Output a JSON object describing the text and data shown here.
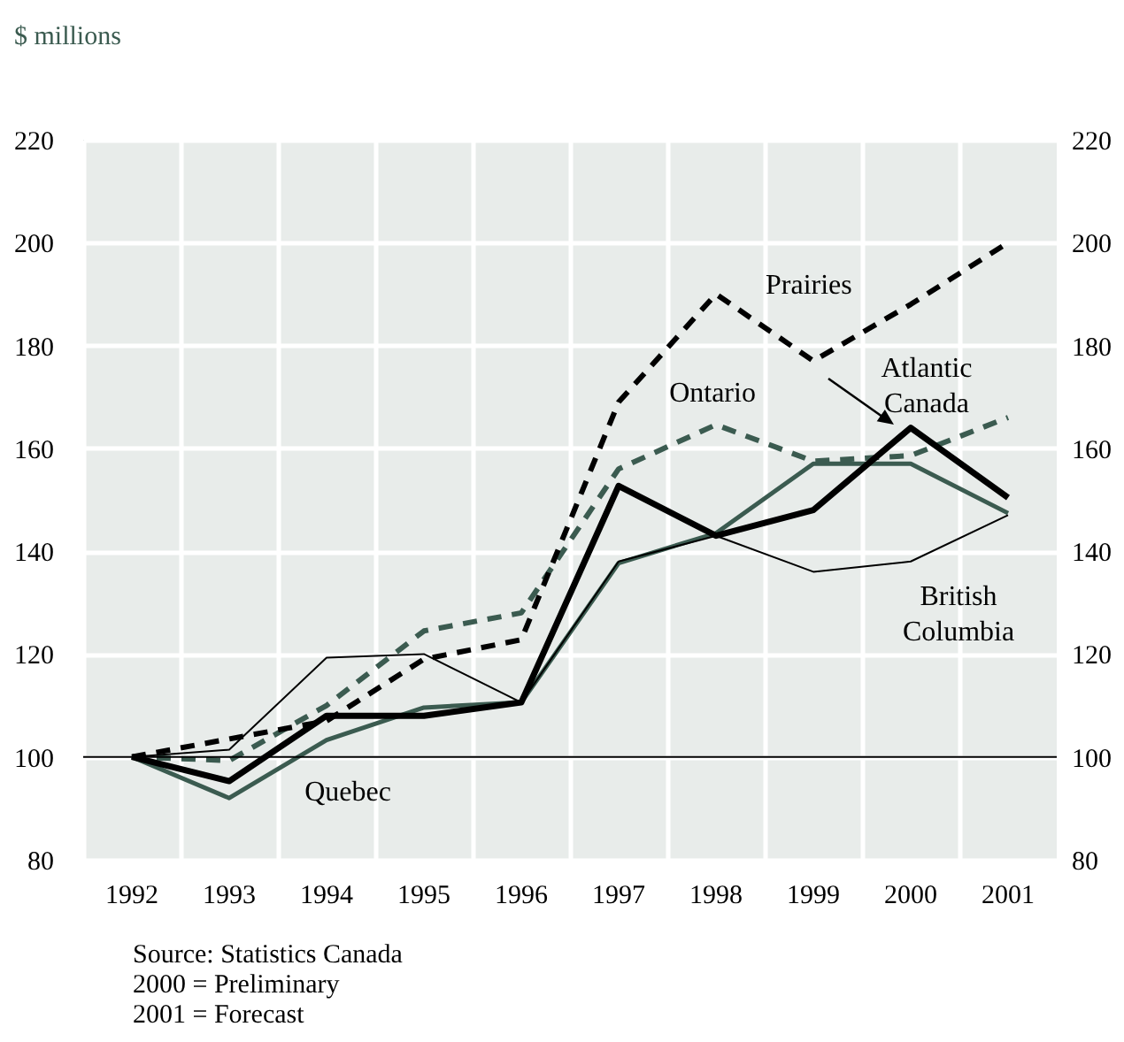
{
  "chart_data": {
    "type": "line",
    "subtitle": "$ millions",
    "categories": [
      "1992",
      "1993",
      "1994",
      "1995",
      "1996",
      "1997",
      "1998",
      "1999",
      "2000",
      "2001"
    ],
    "series": [
      {
        "name": "Quebec",
        "color": "#3b5b50",
        "line_style": "solid",
        "values": [
          100,
          92,
          103.3,
          109.6,
          110.6,
          137.7,
          143.5,
          157,
          157,
          147.4
        ]
      },
      {
        "name": "Ontario",
        "color": "#3b5b50",
        "line_style": "dashed",
        "values": [
          100,
          99.3,
          110,
          124.5,
          128,
          156,
          164.6,
          157.5,
          158.6,
          166
        ]
      },
      {
        "name": "Prairies",
        "color": "#000000",
        "line_style": "dashed",
        "values": [
          100,
          103.5,
          107,
          119,
          122.8,
          169,
          190,
          177,
          188,
          200
        ]
      },
      {
        "name": "British Columbia",
        "color": "#000000",
        "line_style": "solid",
        "values": [
          100,
          101.4,
          119.3,
          120,
          110.6,
          138,
          143,
          136,
          138,
          147
        ]
      },
      {
        "name": "Atlantic Canada",
        "color": "#000000",
        "line_style": "solid",
        "values": [
          100,
          95.3,
          108,
          108,
          110.6,
          152.7,
          143,
          148,
          164,
          150.4
        ]
      }
    ],
    "ylim": [
      80,
      220
    ],
    "yticks": [
      80,
      100,
      120,
      140,
      160,
      180,
      200,
      220
    ],
    "y2lim": [
      80,
      220
    ],
    "y2ticks": [
      80,
      100,
      120,
      140,
      160,
      180,
      200,
      220
    ],
    "grid": true,
    "ref_lines": [
      {
        "axis": "y",
        "value": 100,
        "color": "#000000"
      }
    ],
    "annotations": [
      "Source: Statistics Canada",
      "2000 = Preliminary",
      "2001 = Forecast"
    ]
  }
}
